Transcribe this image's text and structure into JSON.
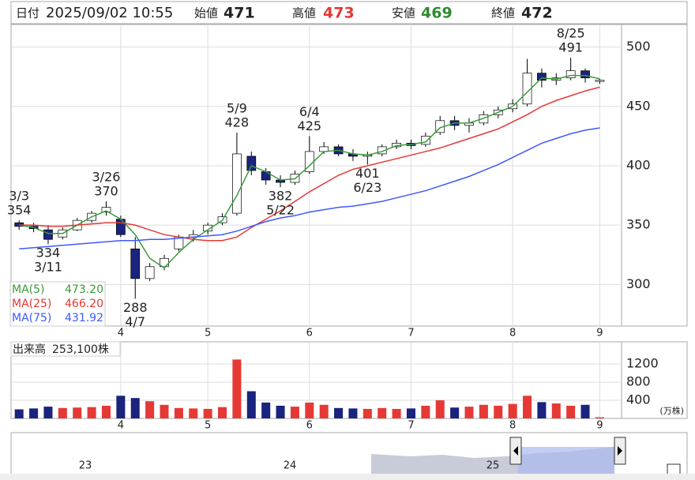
{
  "header": {
    "date_label": "日付",
    "datetime": "2025/09/02 10:55",
    "open_label": "始値",
    "open": 471,
    "high_label": "高値",
    "high": 473,
    "low_label": "安値",
    "low": 469,
    "close_label": "終値",
    "close": 472
  },
  "chart_data": [
    {
      "type": "candlestick",
      "categories": [
        null,
        null,
        null,
        null,
        null,
        null,
        null,
        "4",
        null,
        null,
        null,
        null,
        null,
        "5",
        null,
        null,
        null,
        null,
        null,
        null,
        "6",
        null,
        null,
        null,
        null,
        null,
        null,
        "7",
        null,
        null,
        null,
        null,
        null,
        null,
        "8",
        null,
        null,
        null,
        null,
        null,
        "9"
      ],
      "open": [
        352,
        349,
        346,
        340,
        346,
        354,
        361,
        355,
        330,
        305,
        315,
        330,
        340,
        345,
        352,
        360,
        408,
        395,
        388,
        386,
        395,
        412,
        416,
        410,
        408,
        410,
        416,
        419,
        418,
        428,
        438,
        434,
        436,
        443,
        448,
        452,
        478,
        472,
        474,
        480,
        471
      ],
      "high": [
        354,
        352,
        350,
        348,
        356,
        362,
        370,
        358,
        340,
        318,
        325,
        342,
        346,
        352,
        360,
        428,
        412,
        398,
        392,
        396,
        425,
        420,
        418,
        414,
        412,
        418,
        422,
        422,
        428,
        442,
        442,
        440,
        446,
        450,
        456,
        490,
        482,
        478,
        491,
        482,
        473
      ],
      "low": [
        346,
        344,
        334,
        338,
        345,
        352,
        358,
        340,
        288,
        303,
        312,
        328,
        336,
        342,
        350,
        358,
        392,
        384,
        382,
        384,
        393,
        410,
        408,
        404,
        401,
        408,
        414,
        414,
        416,
        426,
        430,
        428,
        434,
        440,
        445,
        450,
        466,
        468,
        472,
        470,
        469
      ],
      "close": [
        349,
        347,
        338,
        346,
        354,
        360,
        365,
        342,
        305,
        315,
        322,
        340,
        342,
        350,
        357,
        410,
        396,
        388,
        386,
        393,
        412,
        416,
        410,
        408,
        409,
        416,
        419,
        417,
        425,
        438,
        434,
        436,
        443,
        447,
        452,
        478,
        472,
        474,
        480,
        474,
        472
      ],
      "up_color": "#ffffff",
      "down_color": "#1a237e",
      "outline_color": "#000000",
      "series": [
        {
          "name": "MA(5)",
          "color": "#3a9a3a",
          "legend_value": {
            "value": 473.2,
            "label": "473.20"
          },
          "values": [
            350,
            348,
            343,
            343,
            350,
            357,
            362,
            355,
            342,
            322,
            314,
            327,
            338,
            346,
            354,
            375,
            400,
            395,
            388,
            389,
            400,
            412,
            413,
            410,
            409,
            412,
            417,
            418,
            420,
            432,
            436,
            436,
            440,
            445,
            450,
            462,
            474,
            473,
            476,
            476,
            473.2
          ]
        },
        {
          "name": "MA(25)",
          "color": "#e53935",
          "legend_value": {
            "value": 466.2,
            "label": "466.20"
          },
          "values": [
            350,
            350,
            349,
            349,
            350,
            351,
            352,
            352,
            350,
            346,
            342,
            340,
            338,
            337,
            337,
            340,
            348,
            355,
            362,
            370,
            378,
            385,
            392,
            397,
            400,
            403,
            406,
            409,
            412,
            415,
            419,
            423,
            427,
            431,
            437,
            443,
            450,
            455,
            459,
            463,
            466.2
          ]
        },
        {
          "name": "MA(75)",
          "color": "#3d5afe",
          "legend_value": {
            "value": 431.92,
            "label": "431.92"
          },
          "values": [
            330,
            331,
            332,
            333,
            334,
            335,
            336,
            337,
            337,
            338,
            338,
            339,
            340,
            341,
            342,
            345,
            349,
            353,
            356,
            358,
            361,
            363,
            365,
            366,
            368,
            370,
            373,
            376,
            379,
            383,
            387,
            391,
            396,
            401,
            407,
            413,
            419,
            423,
            427,
            430,
            431.92
          ]
        }
      ],
      "annotations": [
        {
          "date": "3/3",
          "value": 354
        },
        {
          "date": "3/11",
          "value": 334
        },
        {
          "date": "3/26",
          "value": 370
        },
        {
          "date": "4/7",
          "value": 288
        },
        {
          "date": "5/9",
          "value": 428
        },
        {
          "date": "5/22",
          "value": 382
        },
        {
          "date": "6/4",
          "value": 425
        },
        {
          "date": "6/23",
          "value": 401
        },
        {
          "date": "8/25",
          "value": 491
        }
      ],
      "ylim": [
        265,
        519
      ],
      "yticks": [
        300,
        350,
        400,
        450,
        500
      ],
      "grid": true
    },
    {
      "type": "bar",
      "title": "出来高",
      "volume_label": {
        "value": 253100,
        "label": "253,100株"
      },
      "unit": "(万株)",
      "categories": [
        null,
        null,
        null,
        null,
        null,
        null,
        null,
        "4",
        null,
        null,
        null,
        null,
        null,
        "5",
        null,
        null,
        null,
        null,
        null,
        null,
        "6",
        null,
        null,
        null,
        null,
        null,
        null,
        "7",
        null,
        null,
        null,
        null,
        null,
        null,
        "8",
        null,
        null,
        null,
        null,
        null,
        "9"
      ],
      "values": [
        200,
        220,
        260,
        230,
        240,
        250,
        280,
        500,
        450,
        380,
        300,
        230,
        220,
        210,
        250,
        1300,
        600,
        350,
        280,
        260,
        350,
        300,
        230,
        220,
        210,
        230,
        210,
        220,
        280,
        400,
        240,
        260,
        300,
        280,
        320,
        500,
        360,
        330,
        280,
        300,
        25.31
      ],
      "up_color": "#e53935",
      "down_color": "#1a237e",
      "ylim": [
        0,
        1690
      ],
      "yticks": [
        400,
        800,
        1200
      ],
      "grid": true
    }
  ],
  "navigator": {
    "labels": [
      "23",
      "24",
      "25"
    ]
  }
}
